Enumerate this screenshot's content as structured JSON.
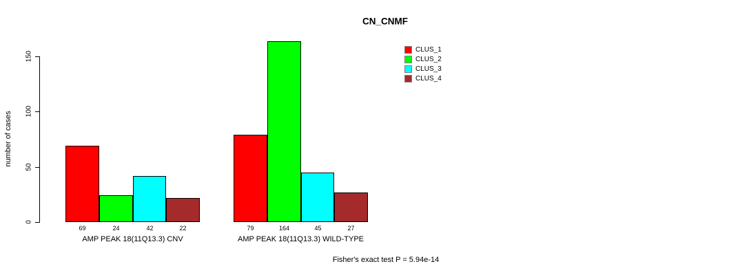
{
  "page": {
    "background": "#ffffff"
  },
  "chart_data": {
    "type": "bar",
    "title": "CN_CNMF",
    "xlabel": "",
    "ylabel": "number of cases",
    "categories": [
      "AMP PEAK 18(11Q13.3) CNV",
      "AMP PEAK 18(11Q13.3) WILD-TYPE"
    ],
    "series": [
      {
        "name": "CLUS_1",
        "color": "#FF0000",
        "values": [
          69,
          79
        ]
      },
      {
        "name": "CLUS_2",
        "color": "#00FF00",
        "values": [
          24,
          164
        ]
      },
      {
        "name": "CLUS_3",
        "color": "#00FFFF",
        "values": [
          42,
          45
        ]
      },
      {
        "name": "CLUS_4",
        "color": "#A52A2A",
        "values": [
          22,
          27
        ]
      }
    ],
    "bar_value_labels_shown": true,
    "axis_ticks": [
      0,
      50,
      100,
      150
    ],
    "ylim": [
      0,
      170
    ],
    "grid": false,
    "legend_position": "top-right",
    "annotation": "Fisher's exact test P = 5.94e-14"
  }
}
